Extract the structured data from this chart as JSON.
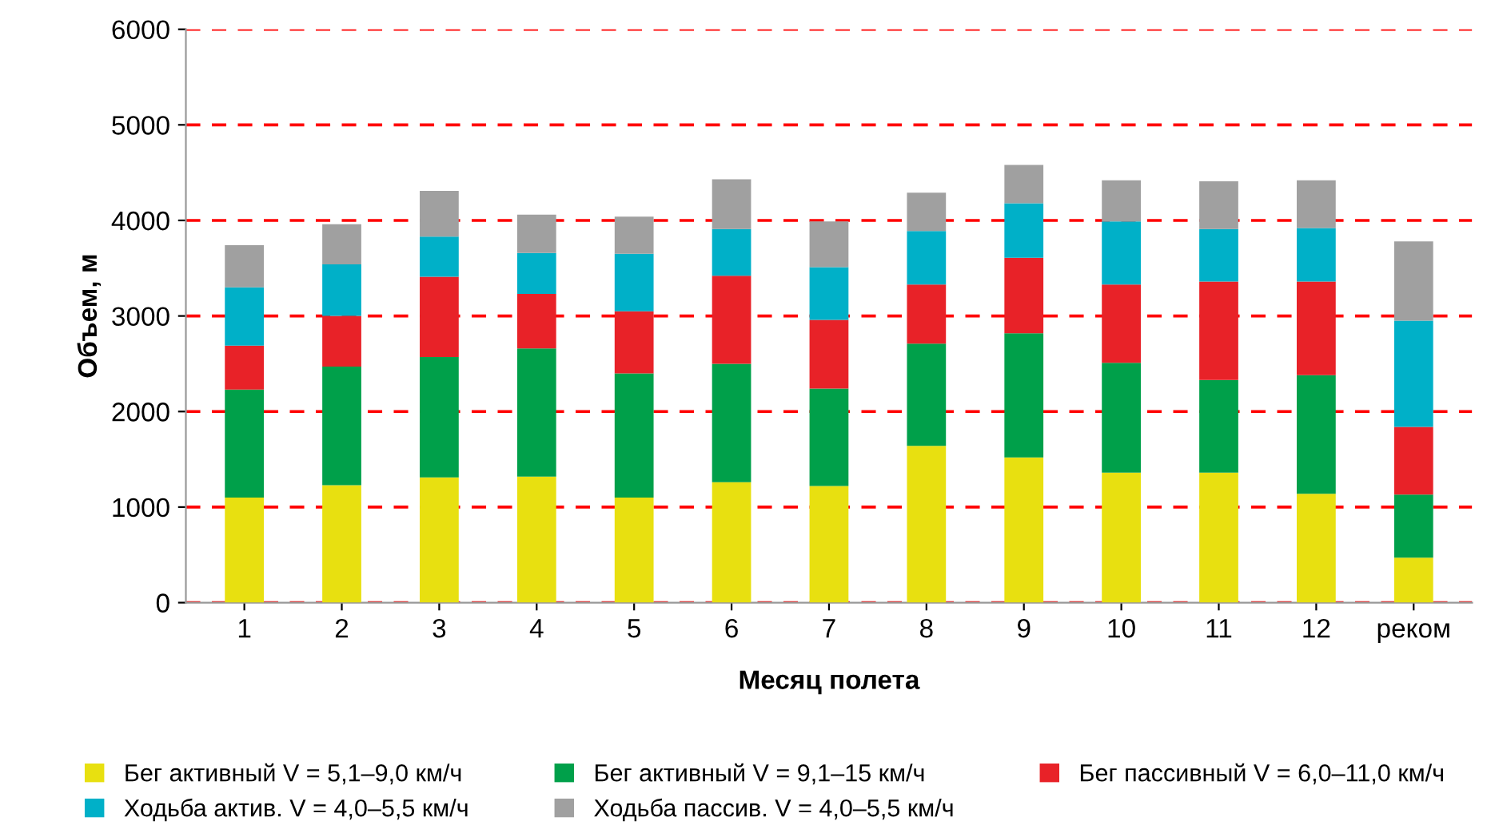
{
  "chart_data": {
    "type": "bar",
    "stacked": true,
    "xlabel": "Месяц полета",
    "ylabel": "Объем, м",
    "categories": [
      "1",
      "2",
      "3",
      "4",
      "5",
      "6",
      "7",
      "8",
      "9",
      "10",
      "11",
      "12",
      "реком"
    ],
    "series": [
      {
        "name": "Бег активный V = 5,1–9,0 км/ч",
        "color": "#e8e010",
        "values": [
          1100,
          1230,
          1310,
          1320,
          1100,
          1260,
          1220,
          1640,
          1520,
          1360,
          1360,
          1140,
          470
        ]
      },
      {
        "name": "Бег активный V = 9,1–15 км/ч",
        "color": "#00a04a",
        "values": [
          1130,
          1240,
          1260,
          1340,
          1300,
          1240,
          1020,
          1070,
          1300,
          1150,
          970,
          1240,
          660
        ]
      },
      {
        "name": "Бег пассивный V = 6,0–11,0 км/ч",
        "color": "#e82228",
        "values": [
          460,
          530,
          840,
          570,
          650,
          920,
          720,
          620,
          790,
          820,
          1030,
          980,
          710
        ]
      },
      {
        "name": "Ходьба актив. V = 4,0–5,5 км/ч",
        "color": "#00b0c8",
        "values": [
          610,
          540,
          420,
          430,
          600,
          490,
          550,
          560,
          570,
          660,
          550,
          560,
          1110
        ]
      },
      {
        "name": "Ходьба пассив. V = 4,0–5,5 км/ч",
        "color": "#a0a0a0",
        "values": [
          440,
          420,
          480,
          400,
          390,
          520,
          480,
          400,
          400,
          430,
          500,
          500,
          830
        ]
      }
    ],
    "ylim": [
      0,
      6000
    ],
    "yticks": [
      0,
      1000,
      2000,
      3000,
      4000,
      5000,
      6000
    ],
    "grid": "y",
    "legend": "bottom"
  }
}
